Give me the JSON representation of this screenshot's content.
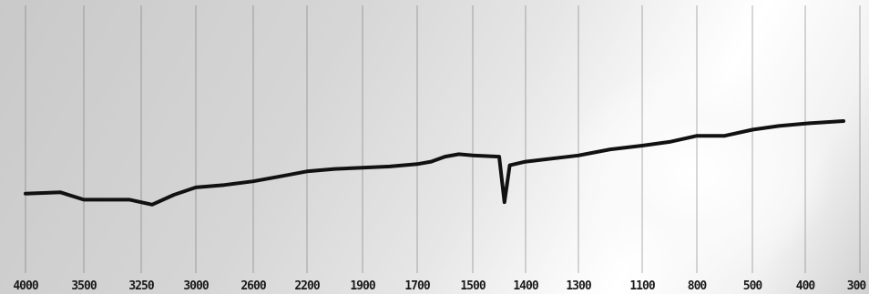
{
  "chart_data": {
    "type": "line",
    "title": "",
    "xlabel": "",
    "ylabel": "",
    "x_ticks": [
      "4000",
      "3500",
      "3250",
      "3000",
      "2600",
      "2200",
      "1900",
      "1700",
      "1500",
      "1400",
      "1300",
      "1100",
      "800",
      "500",
      "400",
      "300"
    ],
    "grid": true,
    "series": [
      {
        "name": "",
        "points": [
          [
            4000,
            0.61
          ],
          [
            3700,
            0.62
          ],
          [
            3500,
            0.56
          ],
          [
            3300,
            0.56
          ],
          [
            3200,
            0.52
          ],
          [
            3100,
            0.6
          ],
          [
            3000,
            0.66
          ],
          [
            2800,
            0.68
          ],
          [
            2600,
            0.71
          ],
          [
            2400,
            0.75
          ],
          [
            2200,
            0.79
          ],
          [
            2050,
            0.81
          ],
          [
            1900,
            0.82
          ],
          [
            1800,
            0.83
          ],
          [
            1700,
            0.85
          ],
          [
            1650,
            0.87
          ],
          [
            1600,
            0.91
          ],
          [
            1550,
            0.93
          ],
          [
            1500,
            0.92
          ],
          [
            1450,
            0.91
          ],
          [
            1440,
            0.54
          ],
          [
            1430,
            0.84
          ],
          [
            1400,
            0.87
          ],
          [
            1300,
            0.92
          ],
          [
            1200,
            0.97
          ],
          [
            1100,
            1.0
          ],
          [
            950,
            1.03
          ],
          [
            800,
            1.08
          ],
          [
            650,
            1.08
          ],
          [
            500,
            1.13
          ],
          [
            450,
            1.16
          ],
          [
            400,
            1.18
          ],
          [
            330,
            1.2
          ]
        ]
      }
    ],
    "colors": {
      "trace": "#111111",
      "grid": "#6e6e6e"
    }
  }
}
